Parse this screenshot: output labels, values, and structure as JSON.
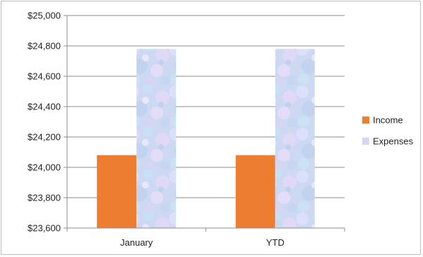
{
  "chart_data": {
    "type": "bar",
    "categories": [
      "January",
      "YTD"
    ],
    "series": [
      {
        "name": "Income",
        "values": [
          24080,
          24080
        ],
        "color": "#ed7d31"
      },
      {
        "name": "Expenses",
        "values": [
          24780,
          24780
        ],
        "color": "#cfd9f3"
      }
    ],
    "title": "",
    "xlabel": "",
    "ylabel": "",
    "ylim": [
      23600,
      25000
    ],
    "ytick_step": 200,
    "ytick_labels": [
      "$23,600",
      "$23,800",
      "$24,000",
      "$24,200",
      "$24,400",
      "$24,600",
      "$24,800",
      "$25,000"
    ],
    "grid": true,
    "legend_position": "right"
  }
}
